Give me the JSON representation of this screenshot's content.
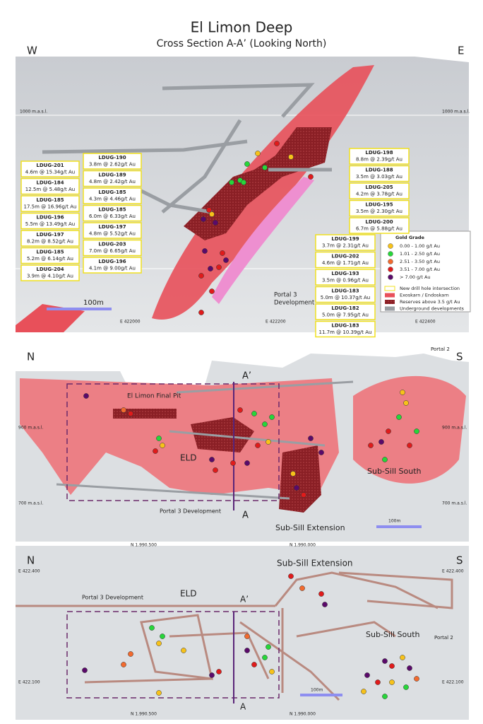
{
  "header": {
    "title": "El Limon Deep",
    "subtitle": "Cross Section A-A’ (Looking North)"
  },
  "panels": [
    {
      "labels": [
        "W",
        "E",
        "1000 m.a.s.l.",
        "1000 m.a.s.l.",
        "E 422000",
        "E 422200",
        "E 422400",
        "100m",
        "Portal 3",
        "Development"
      ],
      "callouts": [
        {
          "name": "LDUG-201",
          "detail": "4.6m @ 15.34g/t Au"
        },
        {
          "name": "LDUG-184",
          "detail": "12.5m @ 5.48g/t Au"
        },
        {
          "name": "LDUG-185",
          "detail": "17.5m @ 16.96g/t Au"
        },
        {
          "name": "LDUG-196",
          "detail": "5.5m @ 13.49g/t Au"
        },
        {
          "name": "LDUG-197",
          "detail": "8.2m @ 8.52g/t Au"
        },
        {
          "name": "LDUG-185",
          "detail": "5.2m @ 6.14g/t Au"
        },
        {
          "name": "LDUG-204",
          "detail": "3.9m @ 4.10g/t Au"
        },
        {
          "name": "LDUG-190",
          "detail": "3.8m @ 2.62g/t Au"
        },
        {
          "name": "LDUG-189",
          "detail": "4.8m @ 2.42g/t Au"
        },
        {
          "name": "LDUG-185",
          "detail": "4.3m @ 4.46g/t Au"
        },
        {
          "name": "LDUG-185",
          "detail": "6.0m @ 6.33g/t Au"
        },
        {
          "name": "LDUG-197",
          "detail": "4.8m @ 5.52g/t Au"
        },
        {
          "name": "LDUG-203",
          "detail": "7.0m @ 6.65g/t Au"
        },
        {
          "name": "LDUG-196",
          "detail": "4.1m @ 9.00g/t Au"
        },
        {
          "name": "LDUG-198",
          "detail": "8.8m @ 2.39g/t Au"
        },
        {
          "name": "LDUG-188",
          "detail": "3.5m @ 3.03g/t Au"
        },
        {
          "name": "LDUG-205",
          "detail": "4.2m @ 3.78g/t Au"
        },
        {
          "name": "LDUG-195",
          "detail": "3.5m @ 2.30g/t Au"
        },
        {
          "name": "LDUG-200",
          "detail": "6.7m @ 5.88g/t Au"
        },
        {
          "name": "LDUG-199",
          "detail": "3.7m @ 2.31g/t Au"
        },
        {
          "name": "LDUG-202",
          "detail": "4.6m @ 1.71g/t Au"
        },
        {
          "name": "LDUG-193",
          "detail": "3.5m @ 0.96g/t Au"
        },
        {
          "name": "LDUG-183",
          "detail": "5.0m @ 10.37g/t Au"
        },
        {
          "name": "LDUG-182",
          "detail": "5.0m @ 7.95g/t Au"
        },
        {
          "name": "LDUG-183",
          "detail": "11.7m @ 10.39g/t Au"
        }
      ]
    },
    {
      "labels": [
        "N",
        "S",
        "A’",
        "A",
        "El Limon Final Pit",
        "900 m.a.s.l.",
        "900 m.a.s.l.",
        "700 m.a.s.l.",
        "700 m.a.s.l.",
        "ELD",
        "Sub-Sill South",
        "Sub-Sill Extension",
        "Portal 3  Development",
        "Portal 2",
        "100m",
        "N 1.990.500",
        "N 1.990.000"
      ]
    },
    {
      "labels": [
        "N",
        "S",
        "Sub-Sill Extension",
        "E 422.400",
        "E 422.400",
        "ELD",
        "A’",
        "Portal 3  Development",
        "Sub-Sill South",
        "Portal 2",
        "E 422.100",
        "E 422.100",
        "100m",
        "A",
        "N 1.990.500",
        "N 1.990.000"
      ]
    }
  ],
  "legend": {
    "title": "Gold Grade",
    "grades": [
      {
        "label": "0.00 - 1.00 g/t Au",
        "color": "#f7c21a"
      },
      {
        "label": "1.01 - 2.50 g/t Au",
        "color": "#27d63a"
      },
      {
        "label": "2.51 - 3.50 g/t Au",
        "color": "#f26a2e"
      },
      {
        "label": "3.51 - 7.00 g/t Au",
        "color": "#e01b1b"
      },
      {
        "label": "> 7.00 g/t Au",
        "color": "#5a0a6a"
      }
    ],
    "items": [
      "New drill hole intersection",
      "Exoskarn / Endoskarn",
      "Reserves above 3.5 g/t Au",
      "Underground developments"
    ]
  }
}
